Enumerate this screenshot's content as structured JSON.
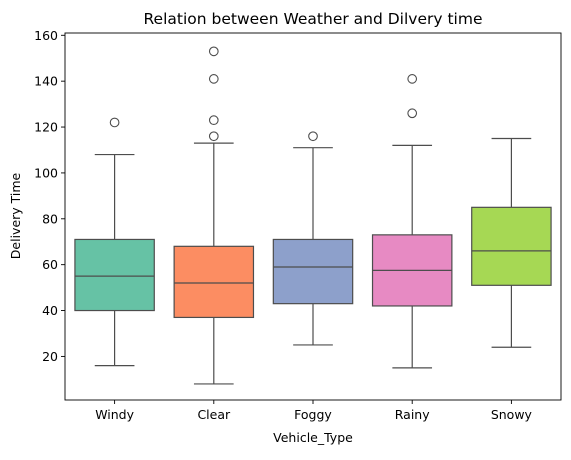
{
  "chart_data": {
    "type": "box",
    "title": "Relation between Weather and Dilvery time",
    "xlabel": "Vehicle_Type",
    "ylabel": "Delivery Time",
    "ylim": [
      1,
      161
    ],
    "yticks": [
      20,
      40,
      60,
      80,
      100,
      120,
      140,
      160
    ],
    "grid": false,
    "categories": [
      "Windy",
      "Clear",
      "Foggy",
      "Rainy",
      "Snowy"
    ],
    "boxes": [
      {
        "category": "Windy",
        "whisker_low": 16,
        "q1": 40,
        "median": 55,
        "q3": 71,
        "whisker_high": 108,
        "outliers": [
          122
        ],
        "color": "#66c2a5"
      },
      {
        "category": "Clear",
        "whisker_low": 8,
        "q1": 37,
        "median": 52,
        "q3": 68,
        "whisker_high": 113,
        "outliers": [
          116,
          123,
          141,
          153
        ],
        "color": "#fc8d62"
      },
      {
        "category": "Foggy",
        "whisker_low": 25,
        "q1": 43,
        "median": 59,
        "q3": 71,
        "whisker_high": 111,
        "outliers": [
          116
        ],
        "color": "#8da0cb"
      },
      {
        "category": "Rainy",
        "whisker_low": 15,
        "q1": 42,
        "median": 57.5,
        "q3": 73,
        "whisker_high": 112,
        "outliers": [
          126,
          141
        ],
        "color": "#e78ac3"
      },
      {
        "category": "Snowy",
        "whisker_low": 24,
        "q1": 51,
        "median": 66,
        "q3": 85,
        "whisker_high": 115,
        "outliers": [],
        "color": "#a6d854"
      }
    ]
  }
}
